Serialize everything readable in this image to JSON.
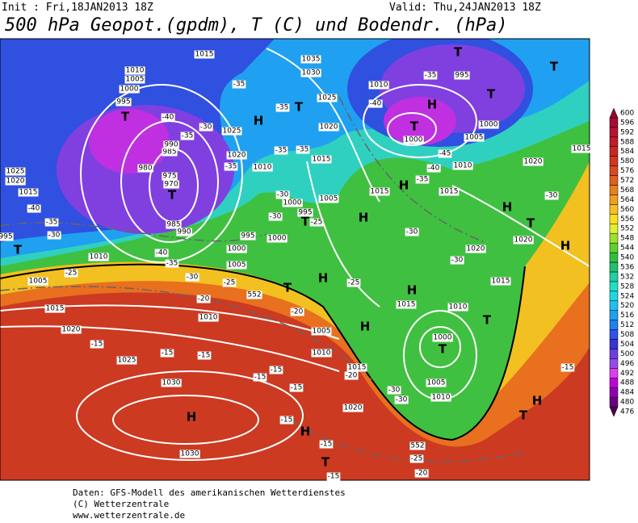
{
  "header": {
    "init": "Init : Fri,18JAN2013 18Z",
    "valid": "Valid: Thu,24JAN2013 18Z",
    "title": "500 hPa Geopot.(gpdm), T (C) und Bodendr. (hPa)"
  },
  "colorbar": {
    "values": [
      476,
      480,
      484,
      488,
      492,
      496,
      500,
      504,
      508,
      512,
      516,
      520,
      524,
      528,
      532,
      536,
      540,
      544,
      548,
      552,
      556,
      560,
      564,
      568,
      572,
      576,
      580,
      584,
      588,
      592,
      596,
      600
    ],
    "colors": [
      "#4b0050",
      "#6a0080",
      "#9000b0",
      "#c000d8",
      "#d840f0",
      "#9a48ec",
      "#6a40e0",
      "#3a34d0",
      "#3050e8",
      "#2080f0",
      "#20a0f0",
      "#20c0f0",
      "#20d8e0",
      "#20e0c0",
      "#20d0a0",
      "#20c070",
      "#30c040",
      "#60d030",
      "#a0e030",
      "#e0f030",
      "#f8e020",
      "#f8c020",
      "#f0a020",
      "#e88020",
      "#e06020",
      "#d84a20",
      "#d03820",
      "#c82820",
      "#c01c28",
      "#b81430",
      "#a80c30",
      "#980830"
    ]
  },
  "map": {
    "labels": [
      "H",
      "H",
      "H",
      "H",
      "H",
      "H",
      "H",
      "H",
      "H",
      "H",
      "H",
      "H",
      "T",
      "T",
      "T",
      "T",
      "T",
      "T",
      "T",
      "T",
      "T",
      "T",
      "T",
      "T",
      "T",
      "T",
      "T",
      "1015",
      "1035",
      "1030",
      "1010",
      "1005",
      "1000",
      "995",
      "995",
      "1025",
      "1020",
      "1010",
      "1000",
      "1005",
      "1000",
      "1010",
      "1020",
      "1015",
      "1015",
      "1015",
      "1010",
      "1015",
      "1000",
      "1005",
      "995",
      "1000",
      "995",
      "1000",
      "1005",
      "1010",
      "1005",
      "1015",
      "1020",
      "1025",
      "1030",
      "1030",
      "1010",
      "1005",
      "1010",
      "1015",
      "1020",
      "1015",
      "1010",
      "1020",
      "1020",
      "1015",
      "1000",
      "1005",
      "1010",
      "980",
      "975",
      "970",
      "985",
      "990",
      "985",
      "990",
      "1025",
      "1020",
      "1015",
      "995",
      "1025",
      "1020",
      "-35",
      "-40",
      "-35",
      "-30",
      "-35",
      "-35",
      "-35",
      "-35",
      "-40",
      "-35",
      "-45",
      "-40",
      "-35",
      "-30",
      "-30",
      "-25",
      "-30",
      "-30",
      "-30",
      "-40",
      "-35",
      "-30",
      "-40",
      "-35",
      "-30",
      "-25",
      "-25",
      "-20",
      "-20",
      "-25",
      "-15",
      "-15",
      "-15",
      "-15",
      "-15",
      "-20",
      "-15",
      "-15",
      "-15",
      "-30",
      "-30",
      "-25",
      "-20",
      "-15",
      "-15",
      "552",
      "552"
    ]
  },
  "footer": {
    "lines": [
      "Daten: GFS-Modell des amerikanischen Wetterdienstes",
      "(C) Wetterzentrale",
      "www.wetterzentrale.de"
    ]
  }
}
